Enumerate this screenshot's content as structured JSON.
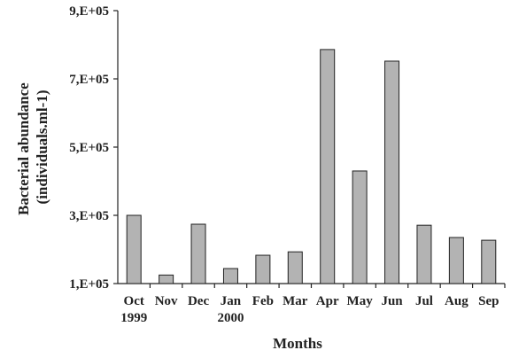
{
  "chart_data": {
    "type": "bar",
    "xlabel": "Months",
    "ylabel": [
      "Bacterial abundance",
      "(individuals.ml-1)"
    ],
    "categories": [
      [
        "Oct",
        "1999"
      ],
      [
        "Nov"
      ],
      [
        "Dec"
      ],
      [
        "Jan",
        "2000"
      ],
      [
        "Feb"
      ],
      [
        "Mar"
      ],
      [
        "Apr"
      ],
      [
        "May"
      ],
      [
        "Jun"
      ],
      [
        "Jul"
      ],
      [
        "Aug"
      ],
      [
        "Sep"
      ]
    ],
    "values": [
      300000,
      125000,
      274000,
      144000,
      183000,
      193000,
      786000,
      430000,
      752000,
      271000,
      235000,
      227000
    ],
    "color": "#b3b3b3",
    "ylim": [
      100000,
      900000
    ],
    "yticks": [
      {
        "value": 100000,
        "label": "1,E+05"
      },
      {
        "value": 300000,
        "label": "3,E+05"
      },
      {
        "value": 500000,
        "label": "5,E+05"
      },
      {
        "value": 700000,
        "label": "7,E+05"
      },
      {
        "value": 900000,
        "label": "9,E+05"
      }
    ]
  }
}
